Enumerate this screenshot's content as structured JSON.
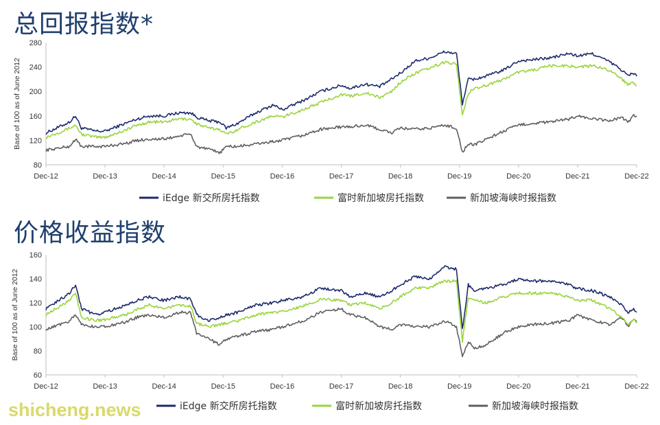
{
  "watermark": "shicheng.news",
  "colors": {
    "iedge": "#1b2a6b",
    "ftst": "#9ad43c",
    "sti": "#5e5e5e",
    "title": "#1f3f6e"
  },
  "chart_data": [
    {
      "type": "line",
      "title": "总回报指数*",
      "ylabel": "Base of 100 as of June 2012",
      "ylim": [
        80,
        280
      ],
      "yticks": [
        "80",
        "120",
        "160",
        "200",
        "240",
        "280"
      ],
      "categories": [
        "Dec-12",
        "Dec-13",
        "Dec-14",
        "Dec-15",
        "Dec-16",
        "Dec-17",
        "Dec-18",
        "Dec-19",
        "Dec-20",
        "Dec-21",
        "Dec-22"
      ],
      "x": [
        2012.95,
        2013.35,
        2013.45,
        2013.55,
        2013.8,
        2013.95,
        2014.3,
        2014.5,
        2014.7,
        2014.95,
        2015.2,
        2015.4,
        2015.5,
        2015.7,
        2015.9,
        2016.0,
        2016.2,
        2016.5,
        2016.8,
        2016.95,
        2017.3,
        2017.6,
        2017.95,
        2018.1,
        2018.35,
        2018.6,
        2018.8,
        2018.95,
        2019.2,
        2019.45,
        2019.7,
        2019.9,
        2020.0,
        2020.1,
        2020.2,
        2020.4,
        2020.7,
        2020.95,
        2021.2,
        2021.5,
        2021.8,
        2021.95,
        2022.2,
        2022.5,
        2022.7,
        2022.8,
        2022.9,
        2022.95
      ],
      "legend_position": "bottom",
      "legend_labels": [
        "iEdge 新交所房托指数",
        "富时新加坡房托指数",
        "新加坡海峡时报指数"
      ],
      "series": [
        {
          "name": "iEdge 新交所房托指数",
          "values": [
            132,
            150,
            160,
            140,
            135,
            135,
            148,
            155,
            160,
            160,
            165,
            165,
            158,
            152,
            150,
            140,
            148,
            165,
            178,
            170,
            185,
            200,
            210,
            205,
            212,
            208,
            220,
            230,
            250,
            255,
            265,
            262,
            180,
            220,
            220,
            225,
            235,
            250,
            252,
            255,
            262,
            258,
            262,
            248,
            235,
            226,
            230,
            225
          ]
        },
        {
          "name": "富时新加坡房托指数",
          "values": [
            125,
            140,
            145,
            130,
            125,
            125,
            137,
            145,
            150,
            150,
            155,
            155,
            147,
            140,
            138,
            130,
            138,
            150,
            160,
            158,
            170,
            182,
            195,
            192,
            198,
            190,
            200,
            215,
            230,
            238,
            248,
            245,
            162,
            198,
            205,
            210,
            220,
            232,
            235,
            242,
            242,
            240,
            242,
            235,
            220,
            212,
            215,
            210
          ]
        },
        {
          "name": "新加坡海峡时报指数",
          "values": [
            104,
            110,
            122,
            110,
            110,
            110,
            115,
            120,
            122,
            122,
            127,
            130,
            110,
            105,
            100,
            110,
            110,
            114,
            118,
            120,
            128,
            138,
            142,
            142,
            145,
            138,
            132,
            140,
            138,
            140,
            145,
            140,
            100,
            115,
            112,
            122,
            135,
            145,
            148,
            150,
            155,
            160,
            155,
            152,
            158,
            150,
            160,
            160
          ]
        }
      ]
    },
    {
      "type": "line",
      "title": "价格收益指数",
      "ylabel": "Base of 100 as of June 2012",
      "ylim": [
        60,
        160
      ],
      "yticks": [
        "60",
        "80",
        "100",
        "120",
        "140",
        "160"
      ],
      "categories": [
        "Dec-12",
        "Dec-13",
        "Dec-14",
        "Dec-15",
        "Dec-16",
        "Dec-17",
        "Dec-18",
        "Dec-19",
        "Dec-20",
        "Dec-21",
        "Dec-22"
      ],
      "x": [
        2012.95,
        2013.35,
        2013.45,
        2013.55,
        2013.8,
        2013.95,
        2014.3,
        2014.5,
        2014.7,
        2014.95,
        2015.2,
        2015.4,
        2015.5,
        2015.7,
        2015.9,
        2016.0,
        2016.2,
        2016.5,
        2016.8,
        2016.95,
        2017.3,
        2017.6,
        2017.95,
        2018.1,
        2018.35,
        2018.6,
        2018.8,
        2018.95,
        2019.2,
        2019.45,
        2019.7,
        2019.9,
        2020.0,
        2020.1,
        2020.2,
        2020.4,
        2020.7,
        2020.95,
        2021.2,
        2021.5,
        2021.8,
        2021.95,
        2022.2,
        2022.5,
        2022.7,
        2022.8,
        2022.9,
        2022.95
      ],
      "legend_position": "bottom",
      "legend_labels": [
        "iEdge 新交所房托指数",
        "富时新加坡房托指数",
        "新加坡海峡时报指数"
      ],
      "series": [
        {
          "name": "iEdge 新交所房托指数",
          "values": [
            115,
            128,
            135,
            115,
            110,
            112,
            118,
            122,
            125,
            122,
            125,
            123,
            110,
            105,
            108,
            110,
            112,
            118,
            120,
            122,
            125,
            132,
            130,
            125,
            128,
            125,
            130,
            135,
            142,
            140,
            150,
            148,
            98,
            135,
            130,
            132,
            135,
            140,
            138,
            138,
            135,
            132,
            130,
            125,
            118,
            112,
            115,
            112
          ]
        },
        {
          "name": "富时新加坡房托指数",
          "values": [
            110,
            122,
            128,
            108,
            105,
            106,
            110,
            115,
            118,
            115,
            118,
            117,
            103,
            100,
            102,
            103,
            105,
            110,
            112,
            113,
            117,
            123,
            122,
            118,
            120,
            115,
            120,
            125,
            132,
            133,
            138,
            138,
            88,
            125,
            122,
            120,
            125,
            128,
            128,
            128,
            125,
            122,
            122,
            115,
            108,
            102,
            106,
            103
          ]
        },
        {
          "name": "新加坡海峡时报指数",
          "values": [
            98,
            105,
            110,
            102,
            100,
            100,
            104,
            108,
            110,
            108,
            112,
            112,
            95,
            90,
            85,
            90,
            92,
            96,
            98,
            100,
            105,
            112,
            115,
            110,
            108,
            100,
            98,
            102,
            100,
            100,
            105,
            100,
            75,
            88,
            82,
            85,
            95,
            100,
            102,
            103,
            105,
            110,
            105,
            102,
            108,
            100,
            106,
            104
          ]
        }
      ]
    }
  ]
}
